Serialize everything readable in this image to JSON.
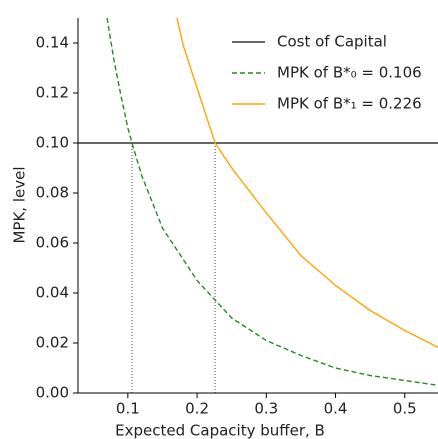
{
  "chart_data": {
    "type": "line",
    "xlabel": "Expected Capacity buffer, B",
    "ylabel": "MPK, level",
    "xlim": [
      0.028,
      0.548
    ],
    "ylim": [
      0,
      0.15
    ],
    "xticks": [
      0.1,
      0.2,
      0.3,
      0.4,
      0.5
    ],
    "yticks": [
      {
        "value": 0,
        "label": "0.00"
      },
      0.02,
      0.04,
      0.06,
      0.08,
      {
        "value": 0.1,
        "label": "0.10"
      },
      0.12,
      0.14
    ],
    "vlines": [
      0.106,
      0.226
    ],
    "series": [
      {
        "name": "Cost of Capital",
        "color": "#333333",
        "dash": "solid",
        "x": [
          0.028,
          0.548
        ],
        "values": [
          0.1,
          0.1
        ]
      },
      {
        "name": "MPK of B*₀ = 0.106",
        "color": "#228b22",
        "dash": "dashed",
        "x": [
          0.07,
          0.08,
          0.09,
          0.1,
          0.106,
          0.12,
          0.15,
          0.2,
          0.25,
          0.3,
          0.35,
          0.4,
          0.45,
          0.5,
          0.55
        ],
        "values": [
          0.15,
          0.133,
          0.119,
          0.106,
          0.1,
          0.087,
          0.066,
          0.045,
          0.03,
          0.021,
          0.015,
          0.01,
          0.007,
          0.005,
          0.003
        ]
      },
      {
        "name": "MPK of B*₁ = 0.226",
        "color": "#ffa500",
        "dash": "solid",
        "x": [
          0.171,
          0.18,
          0.2,
          0.226,
          0.25,
          0.3,
          0.35,
          0.4,
          0.45,
          0.5,
          0.55
        ],
        "values": [
          0.15,
          0.139,
          0.122,
          0.1,
          0.09,
          0.072,
          0.055,
          0.043,
          0.033,
          0.025,
          0.018
        ]
      }
    ]
  }
}
